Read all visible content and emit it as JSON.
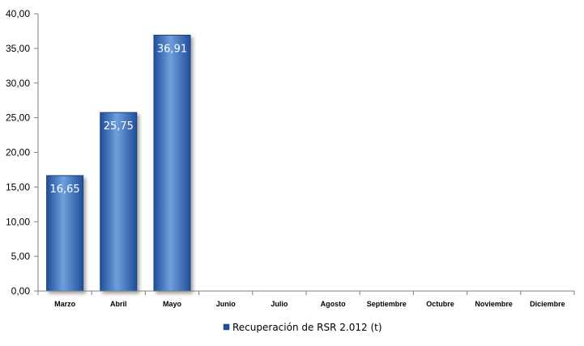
{
  "chart_data": {
    "type": "bar",
    "categories": [
      "Marzo",
      "Abril",
      "Mayo",
      "Junio",
      "Julio",
      "Agosto",
      "Septiembre",
      "Octubre",
      "Noviembre",
      "Diciembre"
    ],
    "series": [
      {
        "name": "Recuperación de RSR 2.012 (t)",
        "values": [
          16.65,
          25.75,
          36.91,
          null,
          null,
          null,
          null,
          null,
          null,
          null
        ]
      }
    ],
    "data_labels": [
      "16,65",
      "25,75",
      "36,91"
    ],
    "y_ticks": [
      "0,00",
      "5,00",
      "10,00",
      "15,00",
      "20,00",
      "25,00",
      "30,00",
      "35,00",
      "40,00"
    ],
    "ylim": [
      0,
      40
    ],
    "grid": false,
    "legend_position": "bottom",
    "colors": {
      "bar_top": "#6f9fdc",
      "bar_bottom": "#1f4f9a",
      "bar_edge": "#1b3f7a",
      "axis": "#7f7f7f"
    }
  }
}
